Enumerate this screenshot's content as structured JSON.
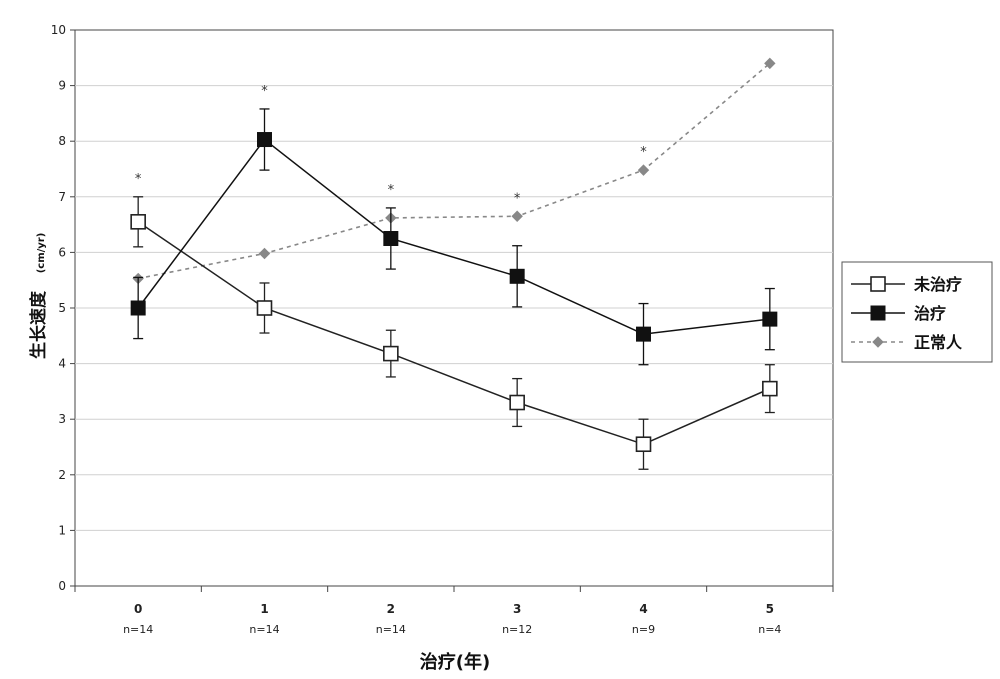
{
  "chart_data": {
    "type": "line",
    "title": "",
    "xlabel": "治疗(年)",
    "ylabel": "生长速度",
    "ylabel_unit": "(cm/yr)",
    "ylim": [
      0,
      10
    ],
    "yticks": [
      "0",
      "1",
      "2",
      "3",
      "4",
      "5",
      "6",
      "7",
      "8",
      "9",
      "10"
    ],
    "categories": [
      "0",
      "1",
      "2",
      "3",
      "4",
      "5"
    ],
    "n_labels": [
      "n=14",
      "n=14",
      "n=14",
      "n=12",
      "n=9",
      "n=4"
    ],
    "significance": [
      "*",
      "*",
      "*",
      "*",
      "*",
      ""
    ],
    "grid": true,
    "legend_position": "right",
    "series": [
      {
        "name": "未治疗",
        "marker": "open-square",
        "line": "solid",
        "color": "#222222",
        "values": [
          6.55,
          5.0,
          4.18,
          3.3,
          2.55,
          3.55
        ],
        "errors": [
          0.45,
          0.45,
          0.42,
          0.43,
          0.45,
          0.43
        ]
      },
      {
        "name": "治疗",
        "marker": "filled-square",
        "line": "solid",
        "color": "#111111",
        "values": [
          5.0,
          8.03,
          6.25,
          5.57,
          4.53,
          4.8
        ],
        "errors": [
          0.55,
          0.55,
          0.55,
          0.55,
          0.55,
          0.55
        ]
      },
      {
        "name": "正常人",
        "marker": "diamond",
        "line": "dotted",
        "color": "#888888",
        "values": [
          5.53,
          5.98,
          6.62,
          6.65,
          7.48,
          9.4
        ],
        "errors": null
      }
    ]
  }
}
